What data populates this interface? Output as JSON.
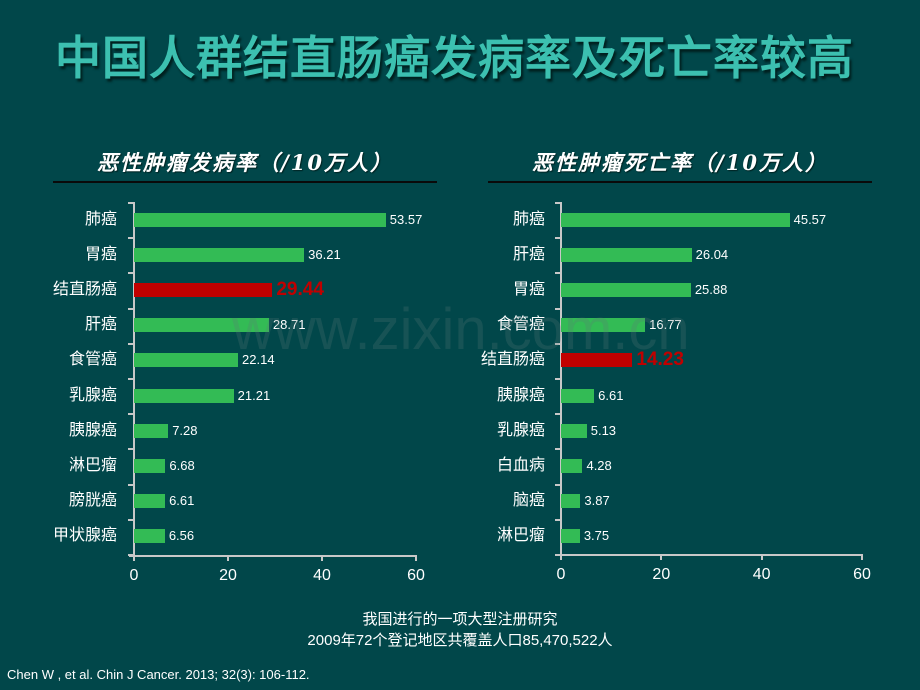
{
  "slide": {
    "title": "中国人群结直肠癌发病率及死亡率较高",
    "watermark": "www.zixin.com.cn",
    "note_line1": "我国进行的一项大型注册研究",
    "note_line2": "2009年72个登记地区共覆盖人口85,470,522人",
    "citation": "Chen W , et al. Chin J Cancer. 2013; 32(3): 106-112."
  },
  "colors": {
    "background": "#01474a",
    "title": "#3cc0b0",
    "bar": "#33bb55",
    "highlight": "#c00000"
  },
  "chart_data": [
    {
      "type": "bar",
      "orientation": "horizontal",
      "title": "恶性肿瘤发病率（/10万人）",
      "categories": [
        "肺癌",
        "胃癌",
        "结直肠癌",
        "肝癌",
        "食管癌",
        "乳腺癌",
        "胰腺癌",
        "淋巴瘤",
        "膀胱癌",
        "甲状腺癌"
      ],
      "values": [
        53.57,
        36.21,
        29.44,
        28.71,
        22.14,
        21.21,
        7.28,
        6.68,
        6.61,
        6.56
      ],
      "value_labels": [
        "53.57",
        "36.21",
        "29.44",
        "28.71",
        "22.14",
        "21.21",
        "7.28",
        "6.68",
        "6.61",
        "6.56"
      ],
      "highlight_index": 2,
      "xlim": [
        0,
        60
      ],
      "xticks": [
        "0",
        "20",
        "40",
        "60"
      ],
      "xlabel": "",
      "ylabel": "",
      "grid": false,
      "legend": null
    },
    {
      "type": "bar",
      "orientation": "horizontal",
      "title": "恶性肿瘤死亡率（/10万人）",
      "categories": [
        "肺癌",
        "肝癌",
        "胃癌",
        "食管癌",
        "结直肠癌",
        "胰腺癌",
        "乳腺癌",
        "白血病",
        "脑癌",
        "淋巴瘤"
      ],
      "values": [
        45.57,
        26.04,
        25.88,
        16.77,
        14.23,
        6.61,
        5.13,
        4.28,
        3.87,
        3.75
      ],
      "value_labels": [
        "45.57",
        "26.04",
        "25.88",
        "16.77",
        "14.23",
        "6.61",
        "5.13",
        "4.28",
        "3.87",
        "3.75"
      ],
      "highlight_index": 4,
      "xlim": [
        0,
        60
      ],
      "xticks": [
        "0",
        "20",
        "40",
        "60"
      ],
      "xlabel": "",
      "ylabel": "",
      "grid": false,
      "legend": null
    }
  ]
}
